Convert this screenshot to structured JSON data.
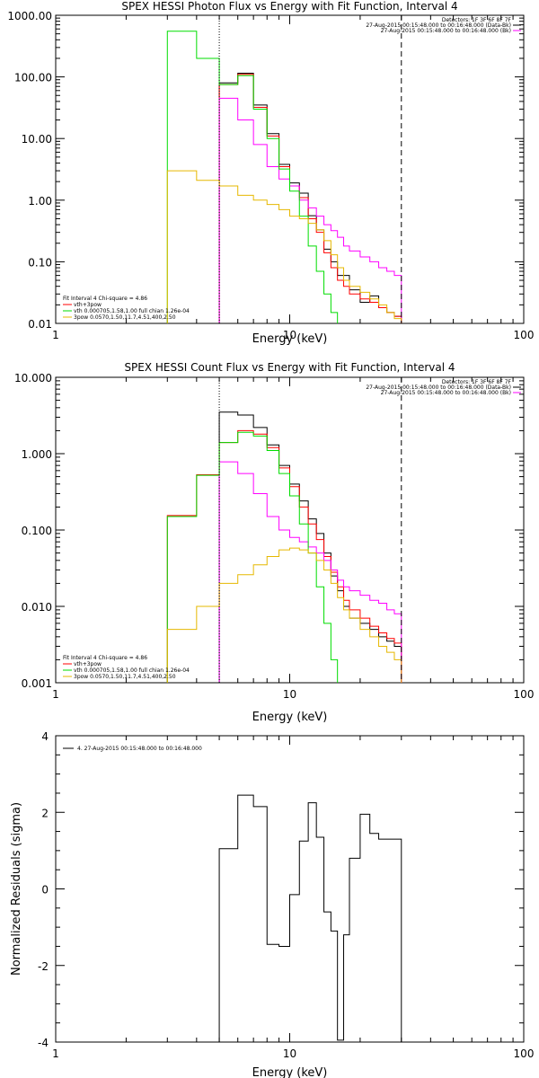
{
  "chart_data": [
    {
      "type": "line",
      "title": "SPEX HESSI Photon Flux vs Energy with Fit Function, Interval 4",
      "xlabel": "Energy (keV)",
      "ylabel": "",
      "xscale": "log",
      "yscale": "log",
      "xlim": [
        1,
        100
      ],
      "ylim": [
        0.01,
        1000
      ],
      "x_ticks": [
        "1",
        "10",
        "100"
      ],
      "y_ticks": [
        "0.01",
        "0.10",
        "1.00",
        "10.00",
        "100.00",
        "1000.00"
      ],
      "vlines": [
        {
          "x": 5.0,
          "style": "dotted"
        },
        {
          "x": 30.0,
          "style": "dashed"
        }
      ],
      "legend_top_right": [
        "Detectors: 1F 3F 6F 8F 7F",
        "27-Aug-2015 00:15:48.000 to 00:16:48.000 (Data-Bk)",
        "27-Aug-2015 00:15:48.000 to 00:16:48.000 (Bk)"
      ],
      "legend_bottom_left": [
        "Fit Interval 4   Chi-square = 4.86",
        "vth+3pow",
        "vth 0.000705,1.58,1.00  full chian 1.26e-04",
        "3pow 0.0570,1.50,11.7,4.51,400,2.50"
      ],
      "series": [
        {
          "name": "Data-Bk",
          "color": "#000000",
          "edges": [
            5.0,
            6.0,
            7.0,
            8.0,
            9.0,
            10.0,
            11.0,
            12.0,
            13.0,
            14.0,
            15.0,
            16.0,
            17.0,
            18.0,
            20.0,
            22.0,
            24.0,
            26.0,
            28.0,
            30.0
          ],
          "values": [
            80,
            115,
            35,
            12,
            3.8,
            1.9,
            1.3,
            0.56,
            0.33,
            0.16,
            0.1,
            0.06,
            0.06,
            0.035,
            0.022,
            0.028,
            0.018,
            0.015,
            0.013
          ]
        },
        {
          "name": "vth+3pow",
          "color": "#ff0000",
          "edges": [
            5.0,
            6.0,
            7.0,
            8.0,
            9.0,
            10.0,
            11.0,
            12.0,
            13.0,
            14.0,
            15.0,
            16.0,
            17.0,
            18.0,
            20.0,
            22.0,
            24.0,
            26.0,
            28.0,
            30.0
          ],
          "values": [
            75,
            110,
            32,
            11,
            3.5,
            1.7,
            1.1,
            0.5,
            0.3,
            0.14,
            0.08,
            0.05,
            0.04,
            0.03,
            0.025,
            0.022,
            0.018,
            0.015,
            0.013
          ]
        },
        {
          "name": "Bk",
          "color": "#ff00ff",
          "edges": [
            5.0,
            6.0,
            7.0,
            8.0,
            9.0,
            10.0,
            11.0,
            12.0,
            13.0,
            14.0,
            15.0,
            16.0,
            17.0,
            18.0,
            20.0,
            22.0,
            24.0,
            26.0,
            28.0,
            30.0
          ],
          "values": [
            45,
            20,
            8,
            3.5,
            2.2,
            1.7,
            1.0,
            0.75,
            0.55,
            0.4,
            0.32,
            0.25,
            0.18,
            0.15,
            0.12,
            0.1,
            0.08,
            0.07,
            0.06
          ]
        },
        {
          "name": "vth",
          "color": "#00dd00",
          "edges": [
            3.0,
            4.0,
            5.0,
            6.0,
            7.0,
            8.0,
            9.0,
            10.0,
            11.0,
            12.0,
            13.0,
            14.0,
            15.0,
            16.0
          ],
          "values": [
            550,
            200,
            75,
            105,
            30,
            10,
            3.2,
            1.4,
            0.55,
            0.18,
            0.07,
            0.03,
            0.015
          ]
        },
        {
          "name": "3pow",
          "color": "#e6b800",
          "edges": [
            3.0,
            4.0,
            5.0,
            6.0,
            7.0,
            8.0,
            9.0,
            10.0,
            11.0,
            12.0,
            13.0,
            14.0,
            15.0,
            16.0,
            17.0,
            18.0,
            20.0,
            22.0,
            24.0,
            26.0,
            28.0,
            30.0
          ],
          "values": [
            3.0,
            2.1,
            1.7,
            1.2,
            1.0,
            0.85,
            0.7,
            0.55,
            0.5,
            0.42,
            0.33,
            0.22,
            0.13,
            0.08,
            0.05,
            0.04,
            0.032,
            0.025,
            0.02,
            0.015,
            0.012
          ]
        }
      ]
    },
    {
      "type": "line",
      "title": "SPEX HESSI Count Flux vs Energy with Fit Function, Interval 4",
      "xlabel": "Energy (keV)",
      "ylabel": "",
      "xscale": "log",
      "yscale": "log",
      "xlim": [
        1,
        100
      ],
      "ylim": [
        0.001,
        10
      ],
      "x_ticks": [
        "1",
        "10",
        "100"
      ],
      "y_ticks": [
        "0.001",
        "0.010",
        "0.100",
        "1.000",
        "10.000"
      ],
      "vlines": [
        {
          "x": 5.0,
          "style": "dotted"
        },
        {
          "x": 30.0,
          "style": "dashed"
        }
      ],
      "legend_top_right": [
        "Detectors: 1F 3F 6F 8F 7F",
        "27-Aug-2015 00:15:48.000 to 00:16:48.000 (Data-Bk)",
        "27-Aug-2015 00:15:48.000 to 00:16:48.000 (Bk)"
      ],
      "legend_bottom_left": [
        "Fit Interval 4   Chi-square = 4.86",
        "vth+3pow",
        "vth 0.000705,1.58,1.00  full chian 1.26e-04",
        "3pow 0.0570,1.50,11.7,4.51,400,2.50"
      ],
      "series": [
        {
          "name": "Data-Bk",
          "color": "#000000",
          "edges": [
            5.0,
            6.0,
            7.0,
            8.0,
            9.0,
            10.0,
            11.0,
            12.0,
            13.0,
            14.0,
            15.0,
            16.0,
            17.0,
            18.0,
            20.0,
            22.0,
            24.0,
            26.0,
            28.0,
            30.0
          ],
          "values": [
            3.5,
            3.2,
            2.2,
            1.3,
            0.7,
            0.4,
            0.24,
            0.14,
            0.09,
            0.05,
            0.025,
            0.016,
            0.01,
            0.007,
            0.006,
            0.005,
            0.004,
            0.0035,
            0.003
          ]
        },
        {
          "name": "vth+3pow",
          "color": "#ff0000",
          "edges": [
            3.0,
            4.0,
            5.0,
            6.0,
            7.0,
            8.0,
            9.0,
            10.0,
            11.0,
            12.0,
            13.0,
            14.0,
            15.0,
            16.0,
            17.0,
            18.0,
            20.0,
            22.0,
            24.0,
            26.0,
            28.0,
            30.0
          ],
          "values": [
            0.155,
            0.53,
            1.4,
            2.0,
            1.8,
            1.2,
            0.65,
            0.37,
            0.2,
            0.12,
            0.075,
            0.045,
            0.028,
            0.018,
            0.012,
            0.009,
            0.007,
            0.0055,
            0.0045,
            0.0038,
            0.0033
          ]
        },
        {
          "name": "Bk",
          "color": "#ff00ff",
          "edges": [
            5.0,
            6.0,
            7.0,
            8.0,
            9.0,
            10.0,
            11.0,
            12.0,
            13.0,
            14.0,
            15.0,
            16.0,
            17.0,
            18.0,
            20.0,
            22.0,
            24.0,
            26.0,
            28.0,
            30.0
          ],
          "values": [
            0.78,
            0.55,
            0.3,
            0.15,
            0.1,
            0.08,
            0.07,
            0.06,
            0.05,
            0.04,
            0.03,
            0.022,
            0.018,
            0.016,
            0.014,
            0.012,
            0.011,
            0.009,
            0.008
          ]
        },
        {
          "name": "vth",
          "color": "#00dd00",
          "edges": [
            3.0,
            4.0,
            5.0,
            6.0,
            7.0,
            8.0,
            9.0,
            10.0,
            11.0,
            12.0,
            13.0,
            14.0,
            15.0,
            16.0
          ],
          "values": [
            0.15,
            0.52,
            1.4,
            1.9,
            1.7,
            1.1,
            0.55,
            0.28,
            0.12,
            0.05,
            0.018,
            0.006,
            0.002
          ]
        },
        {
          "name": "3pow",
          "color": "#e6b800",
          "edges": [
            3.0,
            4.0,
            5.0,
            6.0,
            7.0,
            8.0,
            9.0,
            10.0,
            11.0,
            12.0,
            13.0,
            14.0,
            15.0,
            16.0,
            17.0,
            18.0,
            20.0,
            22.0,
            24.0,
            26.0,
            28.0,
            30.0
          ],
          "values": [
            0.005,
            0.01,
            0.02,
            0.026,
            0.035,
            0.045,
            0.055,
            0.058,
            0.055,
            0.05,
            0.04,
            0.03,
            0.02,
            0.013,
            0.009,
            0.007,
            0.005,
            0.004,
            0.003,
            0.0025,
            0.002
          ]
        }
      ]
    },
    {
      "type": "line",
      "title": "",
      "xlabel": "Energy (keV)",
      "ylabel": "Normalized Residuals (sigma)",
      "xscale": "log",
      "yscale": "linear",
      "xlim": [
        1,
        100
      ],
      "ylim": [
        -4,
        4
      ],
      "x_ticks": [
        "1",
        "10",
        "100"
      ],
      "y_ticks": [
        "-4",
        "-2",
        "0",
        "2",
        "4"
      ],
      "legend_top_left": "4. 27-Aug-2015 00:15:48.000 to 00:16:48.000",
      "series": [
        {
          "name": "4. 27-Aug-2015 00:15:48.000 to 00:16:48.000",
          "color": "#000000",
          "edges": [
            5.0,
            6.0,
            7.0,
            8.0,
            9.0,
            10.0,
            11.0,
            12.0,
            13.0,
            14.0,
            15.0,
            16.0,
            17.0,
            18.0,
            20.0,
            22.0,
            24.0,
            26.0,
            28.0,
            30.0
          ],
          "values": [
            1.05,
            2.45,
            2.15,
            -1.45,
            -1.5,
            -0.15,
            1.25,
            2.25,
            1.35,
            -0.6,
            -1.1,
            -3.95,
            -1.2,
            0.8,
            1.95,
            1.45,
            1.3,
            1.3,
            1.3
          ],
          "baseline": -4
        }
      ]
    }
  ]
}
